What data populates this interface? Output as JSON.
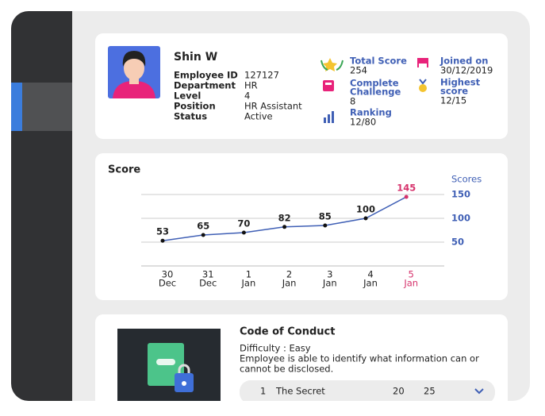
{
  "profile": {
    "name": "Shin W",
    "fields": [
      {
        "label": "Employee ID",
        "value": "127127"
      },
      {
        "label": "Department",
        "value": "HR"
      },
      {
        "label": "Level",
        "value": "4"
      },
      {
        "label": "Position",
        "value": "HR Assistant"
      },
      {
        "label": "Status",
        "value": "Active"
      }
    ]
  },
  "stats": [
    {
      "label": [
        "Total Score"
      ],
      "value": "254"
    },
    {
      "label": [
        "Complete",
        "Challenge"
      ],
      "value": "8"
    },
    {
      "label": [
        "Ranking"
      ],
      "value": "12/80"
    },
    {
      "label": [
        "Joined on"
      ],
      "value": "30/12/2019"
    },
    {
      "label": [
        "Highest",
        "score"
      ],
      "value": "12/15"
    }
  ],
  "chart_data": {
    "type": "line",
    "title": "Score",
    "y_label": "Scores",
    "categories": [
      [
        "30",
        "Dec"
      ],
      [
        "31",
        "Dec"
      ],
      [
        "1",
        "Jan"
      ],
      [
        "2",
        "Jan"
      ],
      [
        "3",
        "Jan"
      ],
      [
        "4",
        "Jan"
      ],
      [
        "5",
        "Jan"
      ]
    ],
    "series": [
      {
        "name": "Score",
        "color": "#3f5fb5",
        "values": [
          53,
          65,
          70,
          82,
          85,
          100,
          145
        ]
      }
    ],
    "highlight_index": 6,
    "highlight_color": "#d6336c",
    "ylim": [
      0,
      150
    ],
    "yticks": [
      50,
      100,
      150
    ],
    "grid": true
  },
  "course": {
    "title": "Code of Conduct",
    "difficulty": "Difficulty : Easy",
    "description": [
      "Employee is able to identify what information can or",
      "cannot be disclosed."
    ],
    "rows": [
      [
        "1",
        "The Secret",
        "20",
        "25"
      ]
    ]
  }
}
